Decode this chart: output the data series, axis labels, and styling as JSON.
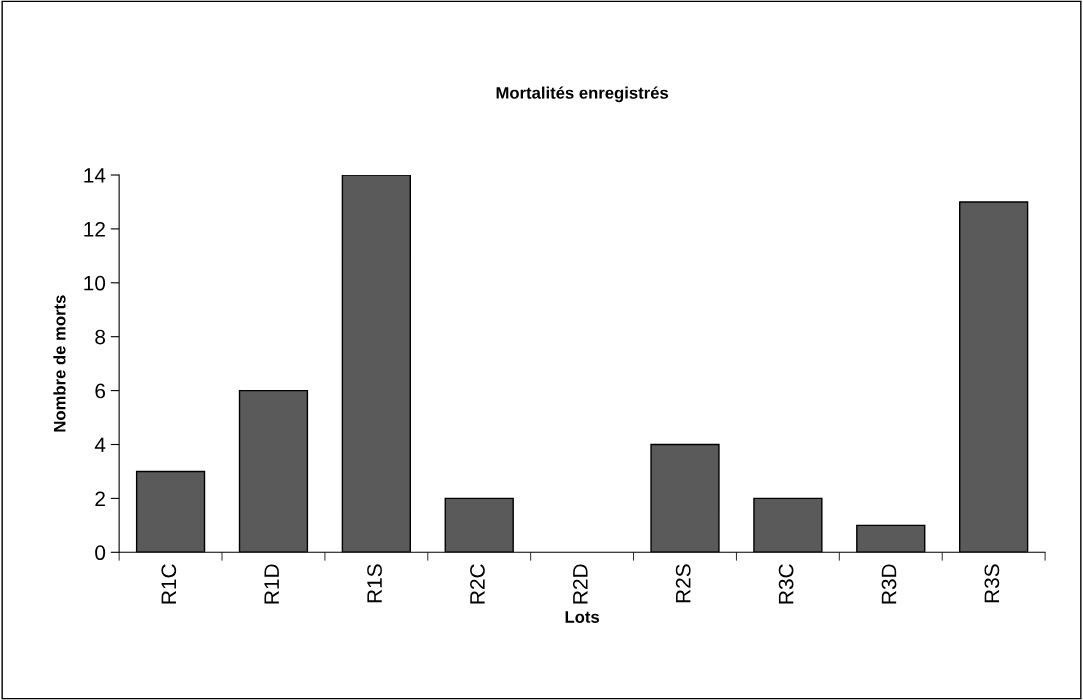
{
  "chart_data": {
    "type": "bar",
    "title": "Mortalités enregistrés",
    "xlabel": "Lots",
    "ylabel": "Nombre de morts",
    "categories": [
      "R1C",
      "R1D",
      "R1S",
      "R2C",
      "R2D",
      "R2S",
      "R3C",
      "R3D",
      "R3S"
    ],
    "values": [
      3,
      6,
      14,
      2,
      0,
      4,
      2,
      1,
      13
    ],
    "color": "#5a5a5a",
    "ylim": [
      0,
      14
    ],
    "yticks": [
      0,
      2,
      4,
      6,
      8,
      10,
      12,
      14
    ],
    "grid": false,
    "legend": false
  }
}
